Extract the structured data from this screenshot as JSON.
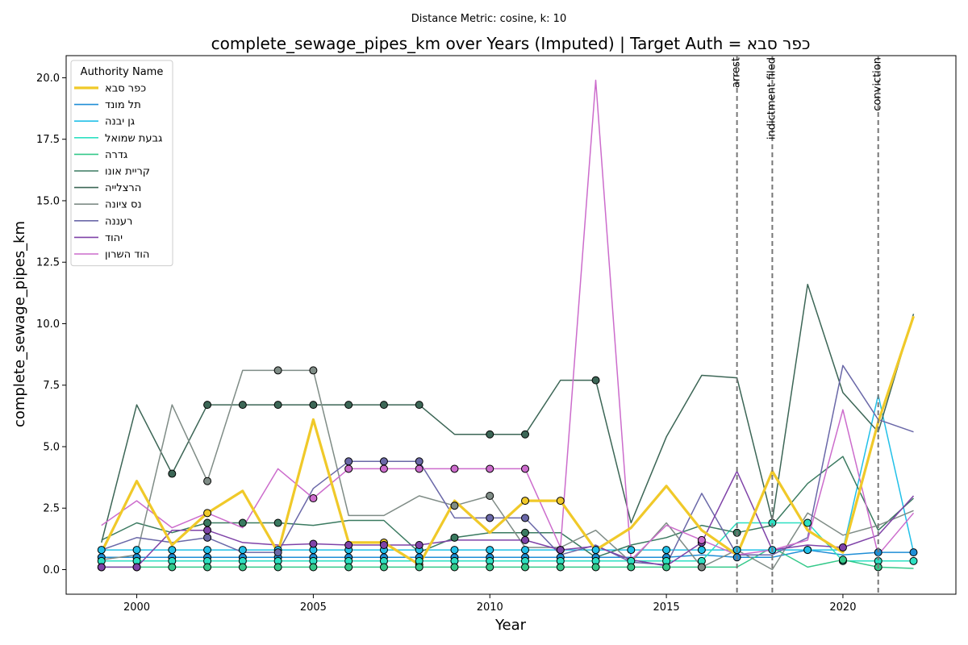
{
  "chart_data": {
    "type": "line",
    "suptitle": "Distance Metric: cosine, k: 10",
    "title": "complete_sewage_pipes_km over Years (Imputed) | Target Auth = כפר סבא",
    "xlabel": "Year",
    "ylabel": "complete_sewage_pipes_km",
    "xlim": [
      1998,
      2023.2
    ],
    "ylim": [
      -1.0,
      20.9
    ],
    "xticks": [
      2000,
      2005,
      2010,
      2015,
      2020
    ],
    "yticks": [
      0.0,
      2.5,
      5.0,
      7.5,
      10.0,
      12.5,
      15.0,
      17.5,
      20.0
    ],
    "ytick_labels": [
      "0.0",
      "2.5",
      "5.0",
      "7.5",
      "10.0",
      "12.5",
      "15.0",
      "17.5",
      "20.0"
    ],
    "x": [
      1999,
      2000,
      2001,
      2002,
      2003,
      2004,
      2005,
      2006,
      2007,
      2008,
      2009,
      2010,
      2011,
      2012,
      2013,
      2014,
      2015,
      2016,
      2017,
      2018,
      2019,
      2020,
      2021,
      2022
    ],
    "legend": {
      "title": "Authority Name",
      "position": "upper left"
    },
    "vlines": [
      {
        "x": 2017,
        "label": "arrest"
      },
      {
        "x": 2018,
        "label": "indictment filed"
      },
      {
        "x": 2021,
        "label": "conviction"
      }
    ],
    "series": [
      {
        "name": "כפר סבא",
        "color": "#f0c929",
        "width": 3.2,
        "target": true,
        "values": [
          0.7,
          3.6,
          1.0,
          2.3,
          3.2,
          0.7,
          6.1,
          1.1,
          1.1,
          0.2,
          2.8,
          1.5,
          2.8,
          2.8,
          0.8,
          1.7,
          3.4,
          1.6,
          0.6,
          4.0,
          1.6,
          0.7,
          6.0,
          10.3
        ],
        "imputed": [
          0,
          0,
          0,
          1,
          0,
          0,
          0,
          0,
          1,
          1,
          0,
          0,
          1,
          1,
          0,
          0,
          0,
          0,
          0,
          0,
          0,
          0,
          0,
          0
        ]
      },
      {
        "name": "תל מונד",
        "color": "#1f8ed6",
        "width": 1.5,
        "values": [
          0.5,
          0.5,
          0.5,
          0.5,
          0.5,
          0.5,
          0.5,
          0.5,
          0.5,
          0.5,
          0.5,
          0.5,
          0.5,
          0.5,
          0.5,
          0.5,
          0.5,
          0.6,
          0.5,
          0.5,
          0.8,
          0.6,
          0.7,
          0.7
        ],
        "imputed": [
          1,
          1,
          1,
          1,
          1,
          1,
          1,
          1,
          1,
          1,
          1,
          1,
          1,
          1,
          1,
          0,
          1,
          0,
          1,
          0,
          1,
          0,
          1,
          1
        ]
      },
      {
        "name": "גן יבנה",
        "color": "#22c0e8",
        "width": 1.5,
        "values": [
          0.8,
          0.8,
          0.8,
          0.8,
          0.8,
          0.8,
          0.8,
          0.8,
          0.8,
          0.8,
          0.8,
          0.8,
          0.8,
          0.8,
          0.8,
          0.8,
          0.8,
          0.8,
          0.8,
          0.8,
          0.8,
          0.8,
          7.1,
          0.7
        ],
        "imputed": [
          1,
          1,
          1,
          1,
          1,
          1,
          1,
          1,
          1,
          1,
          1,
          1,
          1,
          1,
          1,
          1,
          1,
          1,
          1,
          1,
          1,
          0,
          0,
          0
        ]
      },
      {
        "name": "גבעת שמואל",
        "color": "#2de0c2",
        "width": 1.5,
        "values": [
          0.35,
          0.35,
          0.35,
          0.35,
          0.35,
          0.35,
          0.35,
          0.35,
          0.35,
          0.35,
          0.35,
          0.35,
          0.35,
          0.35,
          0.35,
          0.35,
          0.35,
          0.35,
          1.9,
          1.9,
          1.9,
          0.35,
          0.35,
          0.35
        ],
        "imputed": [
          1,
          1,
          1,
          1,
          1,
          1,
          1,
          1,
          1,
          1,
          1,
          1,
          1,
          1,
          1,
          1,
          1,
          1,
          0,
          1,
          1,
          1,
          1,
          1
        ]
      },
      {
        "name": "גדרה",
        "color": "#35c98a",
        "width": 1.5,
        "values": [
          0.1,
          0.1,
          0.1,
          0.1,
          0.1,
          0.1,
          0.1,
          0.1,
          0.1,
          0.1,
          0.1,
          0.1,
          0.1,
          0.1,
          0.1,
          0.1,
          0.1,
          0.1,
          0.1,
          0.9,
          0.1,
          0.4,
          0.1,
          0.05
        ],
        "imputed": [
          1,
          1,
          1,
          1,
          1,
          1,
          1,
          1,
          1,
          1,
          1,
          1,
          1,
          1,
          1,
          1,
          1,
          1,
          0,
          0,
          0,
          1,
          1,
          0
        ]
      },
      {
        "name": "קריית אונו",
        "color": "#3a7a60",
        "width": 1.5,
        "values": [
          1.2,
          1.9,
          1.5,
          1.9,
          1.9,
          1.9,
          1.8,
          2.0,
          2.0,
          0.7,
          1.3,
          1.5,
          1.5,
          1.5,
          0.5,
          1.0,
          1.3,
          1.8,
          1.5,
          1.8,
          3.5,
          4.6,
          1.6,
          2.9
        ],
        "imputed": [
          0,
          0,
          0,
          1,
          1,
          1,
          0,
          0,
          0,
          0,
          1,
          0,
          1,
          0,
          0,
          0,
          0,
          0,
          1,
          0,
          0,
          0,
          0,
          0
        ]
      },
      {
        "name": "הרצלייה",
        "color": "#3c6656",
        "width": 1.5,
        "values": [
          1.1,
          6.7,
          3.9,
          6.7,
          6.7,
          6.7,
          6.7,
          6.7,
          6.7,
          6.7,
          5.5,
          5.5,
          5.5,
          7.7,
          7.7,
          1.9,
          5.4,
          7.9,
          7.8,
          2.0,
          11.6,
          7.2,
          5.6,
          10.4
        ],
        "imputed": [
          0,
          0,
          1,
          1,
          1,
          1,
          1,
          1,
          1,
          1,
          0,
          1,
          1,
          0,
          1,
          0,
          0,
          0,
          0,
          0,
          0,
          0,
          0,
          0
        ]
      },
      {
        "name": "נס ציונה",
        "color": "#7f8c86",
        "width": 1.5,
        "values": [
          0.4,
          0.6,
          6.7,
          3.6,
          8.1,
          8.1,
          8.1,
          2.2,
          2.2,
          3.0,
          2.6,
          3.0,
          0.9,
          0.9,
          1.6,
          0.3,
          1.9,
          0.1,
          0.8,
          0.0,
          2.3,
          1.4,
          1.8,
          2.4
        ],
        "imputed": [
          0,
          0,
          0,
          1,
          0,
          1,
          1,
          0,
          0,
          0,
          1,
          1,
          0,
          0,
          0,
          0,
          0,
          1,
          0,
          0,
          0,
          0,
          0,
          0
        ]
      },
      {
        "name": "רעננה",
        "color": "#6a68a8",
        "width": 1.5,
        "values": [
          0.8,
          1.3,
          1.1,
          1.3,
          0.7,
          0.7,
          3.3,
          4.4,
          4.4,
          4.4,
          2.1,
          2.1,
          2.1,
          0.6,
          1.0,
          0.3,
          0.2,
          3.1,
          0.6,
          0.6,
          1.3,
          8.3,
          6.1,
          5.6
        ],
        "imputed": [
          0,
          0,
          0,
          1,
          0,
          1,
          0,
          1,
          1,
          1,
          0,
          1,
          1,
          0,
          0,
          0,
          0,
          0,
          0,
          0,
          0,
          0,
          0,
          0
        ]
      },
      {
        "name": "יהוד",
        "color": "#7f43a8",
        "width": 1.5,
        "values": [
          0.1,
          0.1,
          1.6,
          1.6,
          1.1,
          1.0,
          1.05,
          1.0,
          1.0,
          1.0,
          1.2,
          1.2,
          1.2,
          0.8,
          0.95,
          0.4,
          0.15,
          1.1,
          4.0,
          0.8,
          1.0,
          0.9,
          1.4,
          3.0
        ],
        "imputed": [
          1,
          1,
          0,
          1,
          0,
          0,
          1,
          1,
          1,
          1,
          0,
          0,
          1,
          1,
          0,
          0,
          0,
          1,
          0,
          0,
          0,
          1,
          0,
          0
        ]
      },
      {
        "name": "הוד השרון",
        "color": "#cc6ccc",
        "width": 1.5,
        "values": [
          1.8,
          2.8,
          1.7,
          2.3,
          1.7,
          4.1,
          2.9,
          4.1,
          4.1,
          4.1,
          4.1,
          4.1,
          4.1,
          0.9,
          19.9,
          0.4,
          1.8,
          1.2,
          0.6,
          0.8,
          1.2,
          6.5,
          0.6,
          2.3
        ],
        "imputed": [
          0,
          0,
          0,
          0,
          0,
          0,
          1,
          1,
          1,
          1,
          1,
          1,
          1,
          0,
          0,
          0,
          0,
          1,
          0,
          0,
          0,
          0,
          0,
          0
        ]
      }
    ]
  }
}
